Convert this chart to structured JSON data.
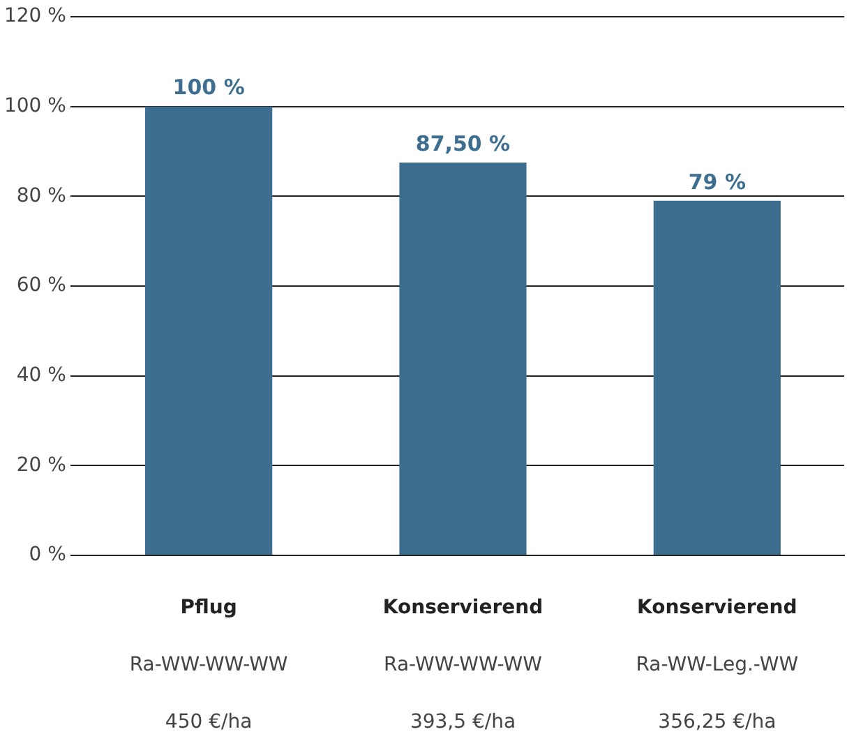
{
  "chart_data": {
    "type": "bar",
    "categories": [
      "Pflug\nRa-WW-WW-WW\n450 €/ha",
      "Konservierend\nRa-WW-WW-WW\n393,5 €/ha",
      "Konservierend\nRa-WW-Leg.-WW\n356,25 €/ha"
    ],
    "values": [
      100,
      87.5,
      79
    ],
    "value_labels": [
      "100 %",
      "87,50 %",
      "79 %"
    ],
    "color": "#3d6e8f",
    "ylim": [
      0,
      120
    ],
    "yticks": [
      {
        "value": 0,
        "label": "0 %"
      },
      {
        "value": 20,
        "label": "20 %"
      },
      {
        "value": 40,
        "label": "40 %"
      },
      {
        "value": 60,
        "label": "60 %"
      },
      {
        "value": 80,
        "label": "80 %"
      },
      {
        "value": 100,
        "label": "100 %"
      },
      {
        "value": 120,
        "label": "120 %"
      }
    ],
    "grid": "y"
  }
}
